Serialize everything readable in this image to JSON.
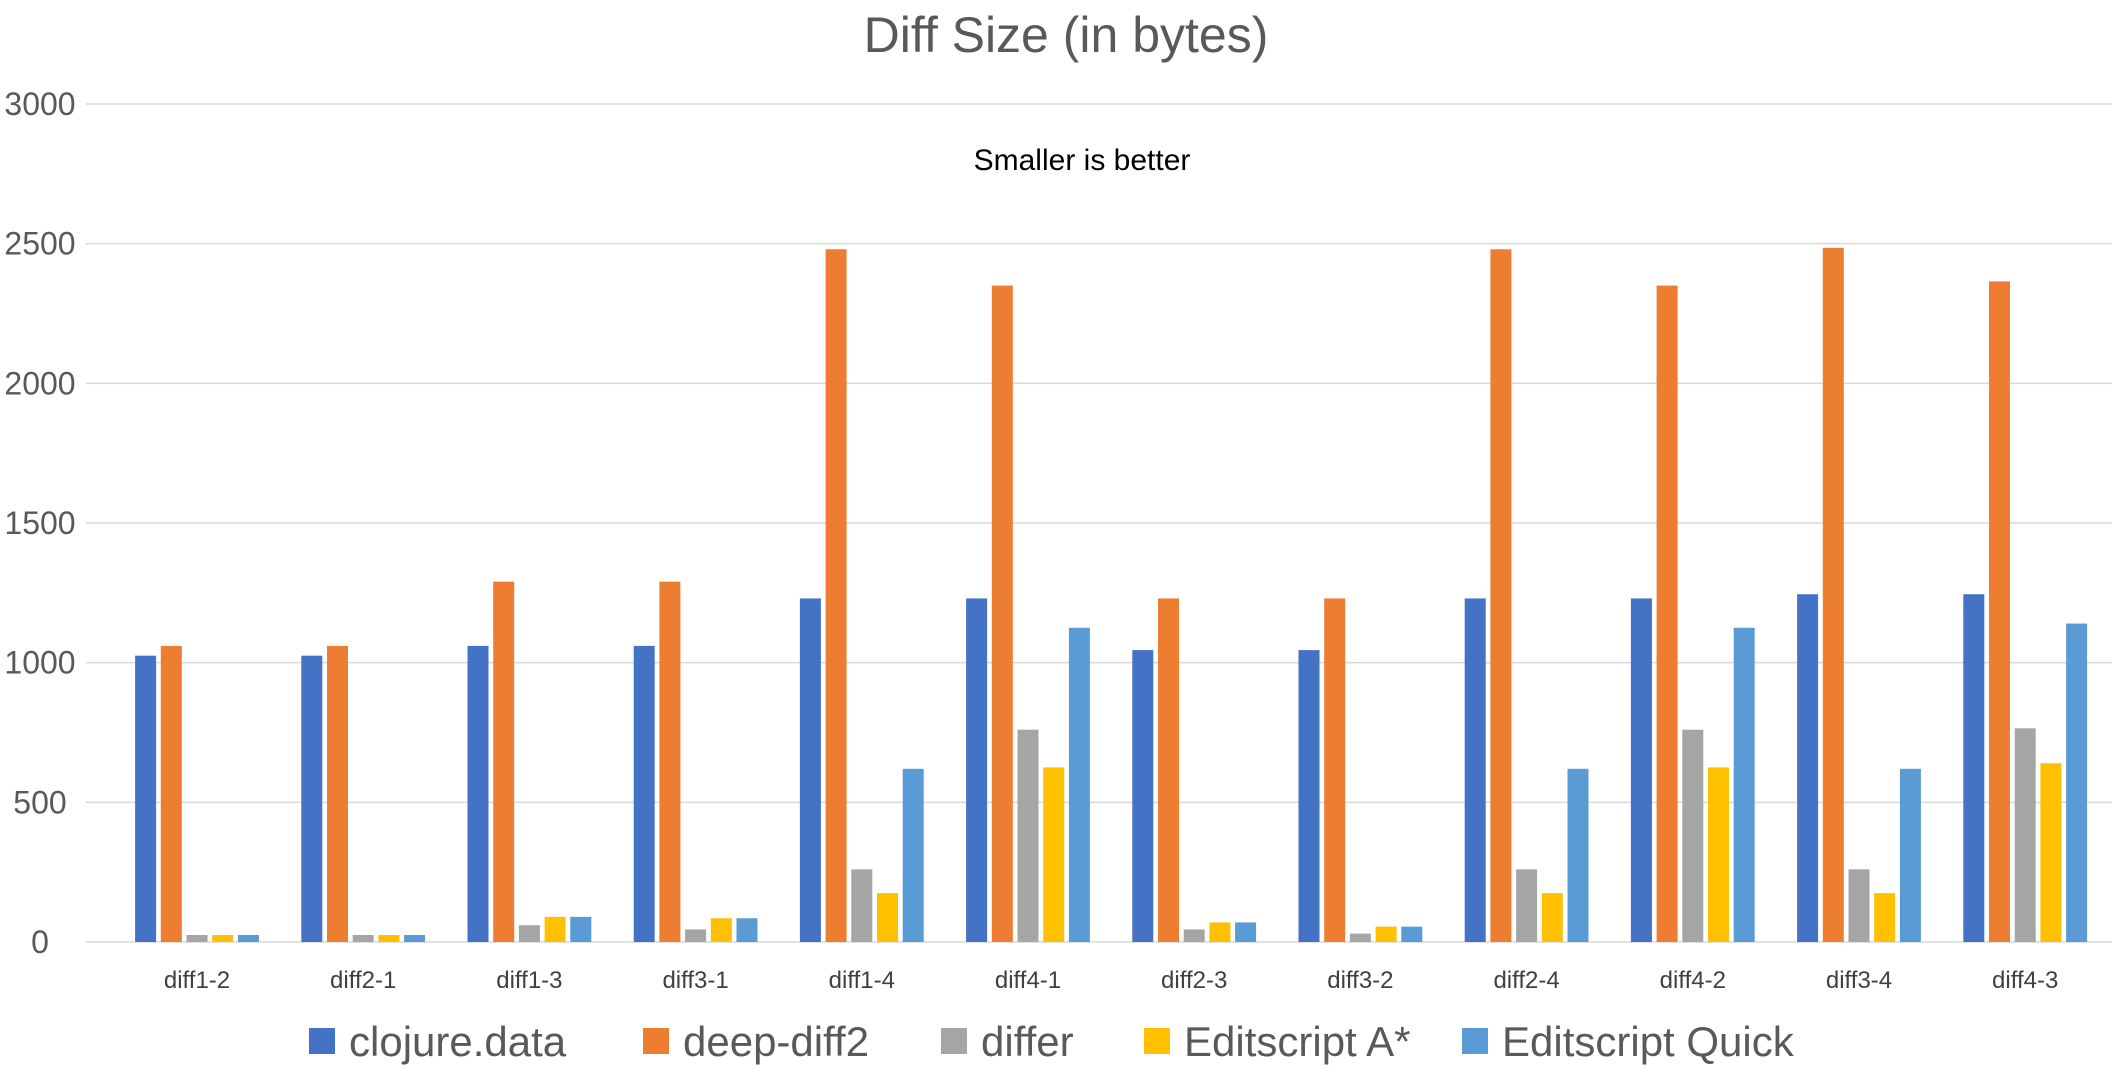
{
  "chart_data": {
    "type": "bar",
    "title": "Diff Size (in bytes)",
    "annotation": "Smaller is better",
    "xlabel": "",
    "ylabel": "",
    "ylim": [
      0,
      3000
    ],
    "yticks": [
      0,
      500,
      1000,
      1500,
      2000,
      2500,
      3000
    ],
    "grid": true,
    "legend_position": "bottom",
    "categories": [
      "diff1-2",
      "diff2-1",
      "diff1-3",
      "diff3-1",
      "diff1-4",
      "diff4-1",
      "diff2-3",
      "diff3-2",
      "diff2-4",
      "diff4-2",
      "diff3-4",
      "diff4-3"
    ],
    "series": [
      {
        "name": "clojure.data",
        "color": "#4472c4",
        "values": [
          1025,
          1025,
          1060,
          1060,
          1230,
          1230,
          1045,
          1045,
          1230,
          1230,
          1245,
          1245
        ]
      },
      {
        "name": "deep-diff2",
        "color": "#ed7d31",
        "values": [
          1060,
          1060,
          1290,
          1290,
          2480,
          2350,
          1230,
          1230,
          2480,
          2350,
          2485,
          2365
        ]
      },
      {
        "name": "differ",
        "color": "#a5a5a5",
        "values": [
          25,
          25,
          60,
          45,
          260,
          760,
          45,
          30,
          260,
          760,
          260,
          765
        ]
      },
      {
        "name": "Editscript A*",
        "color": "#ffc000",
        "values": [
          25,
          25,
          90,
          85,
          175,
          625,
          70,
          55,
          175,
          625,
          175,
          640
        ]
      },
      {
        "name": "Editscript Quick",
        "color": "#5b9bd5",
        "values": [
          25,
          25,
          90,
          85,
          620,
          1125,
          70,
          55,
          620,
          1125,
          620,
          1140
        ]
      }
    ]
  }
}
